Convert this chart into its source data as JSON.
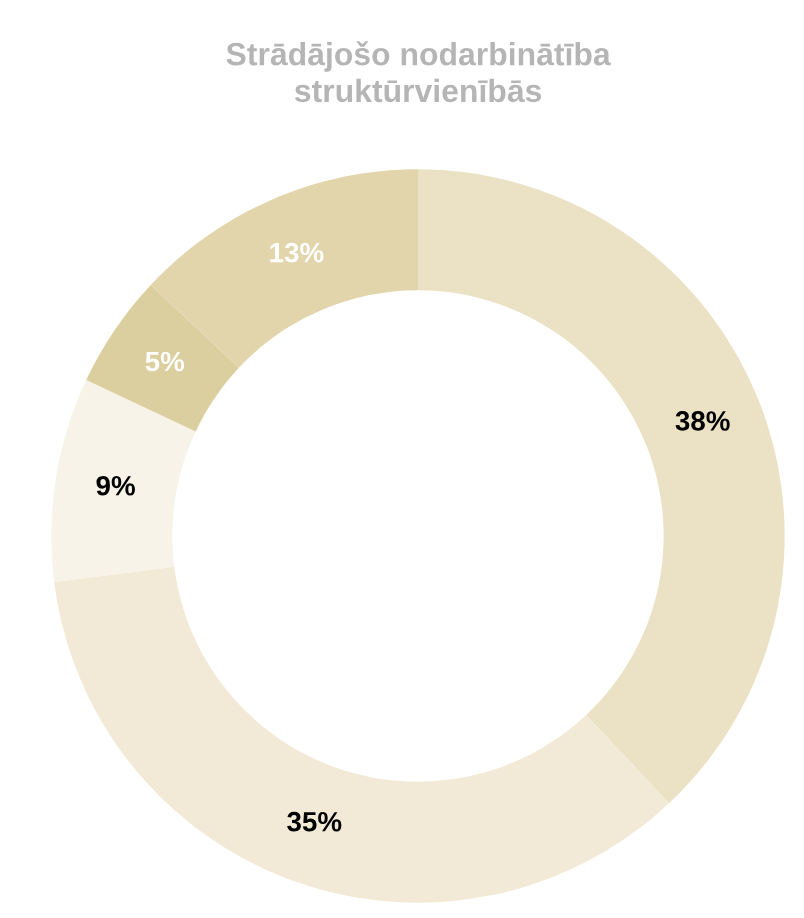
{
  "chart_data": {
    "type": "donut",
    "title": "Strādājošo nodarbinātība\nstruktūrvienībās",
    "categories": [
      null,
      null,
      null,
      null,
      null
    ],
    "values": [
      38,
      35,
      9,
      5,
      13
    ],
    "colors": [
      "#ebe1c4",
      "#f2ead6",
      "#f7f3e8",
      "#dccf9f",
      "#e2d5ab"
    ],
    "value_labels": [
      "38%",
      "35%",
      "9%",
      "5%",
      "13%"
    ],
    "legend": false
  }
}
